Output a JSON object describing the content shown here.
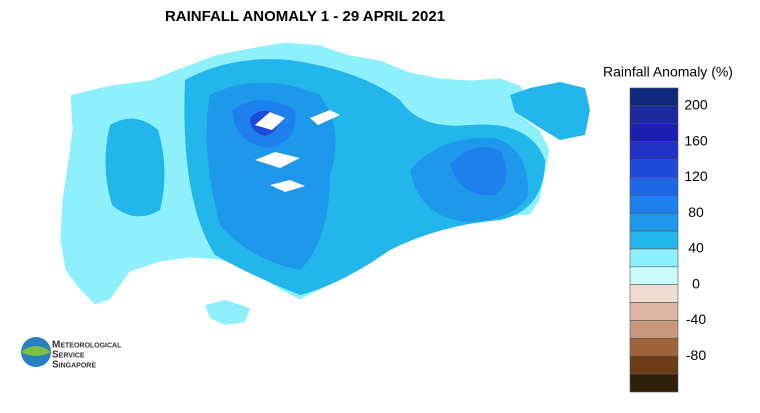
{
  "title": "RAINFALL ANOMALY 1 - 29 APRIL 2021",
  "legend": {
    "title": "Rainfall Anomaly (%)",
    "bins": [
      220,
      200,
      180,
      160,
      140,
      120,
      100,
      80,
      60,
      40,
      20,
      0,
      -20,
      -40,
      -60,
      -80,
      -100,
      -120
    ],
    "colors": [
      "#10287c",
      "#1a2a9c",
      "#1c1eb0",
      "#2032c6",
      "#1e4ad8",
      "#1e66e6",
      "#1e80ee",
      "#1e98ea",
      "#22b6ea",
      "#8ef0fa",
      "#cafafa",
      "#f0dcd0",
      "#dcb6a2",
      "#c8987c",
      "#a0643c",
      "#6e3c14",
      "#2e1e0a"
    ],
    "ticks": [
      200,
      160,
      120,
      80,
      40,
      0,
      -40,
      -80
    ]
  },
  "logo": {
    "line1": "Meteorological",
    "line2": "Service",
    "line3": "Singapore"
  }
}
